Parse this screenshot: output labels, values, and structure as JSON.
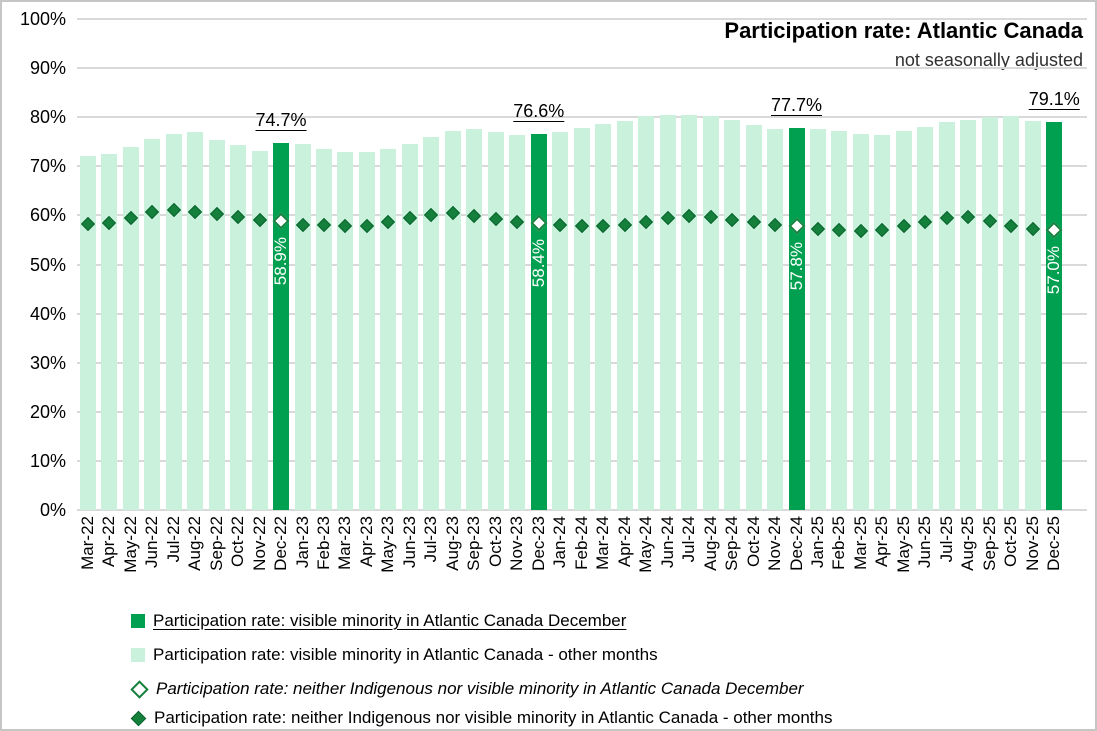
{
  "title": "Participation rate: Atlantic Canada",
  "subtitle": "not seasonally adjusted",
  "colors": {
    "december_bar": "#00A050",
    "other_bar": "#C9F1DC",
    "diamond_filled": "#14803C",
    "diamond_open_border": "#14803C",
    "diamond_open_fill": "#FFFFFF",
    "gridline": "#D9D9D9",
    "inner_label_text": "#FFFFFF",
    "callout_text": "#000000"
  },
  "chart_data": {
    "type": "bar",
    "title": "Participation rate: Atlantic Canada",
    "subtitle": "not seasonally adjusted",
    "categories": [
      "Mar-22",
      "Apr-22",
      "May-22",
      "Jun-22",
      "Jul-22",
      "Aug-22",
      "Sep-22",
      "Oct-22",
      "Nov-22",
      "Dec-22",
      "Jan-23",
      "Feb-23",
      "Mar-23",
      "Apr-23",
      "May-23",
      "Jun-23",
      "Jul-23",
      "Aug-23",
      "Sep-23",
      "Oct-23",
      "Nov-23",
      "Dec-23",
      "Jan-24",
      "Feb-24",
      "Mar-24",
      "Apr-24",
      "May-24",
      "Jun-24",
      "Jul-24",
      "Aug-24",
      "Sep-24",
      "Oct-24",
      "Nov-24",
      "Dec-24",
      "Jan-25",
      "Feb-25",
      "Mar-25",
      "Apr-25",
      "May-25",
      "Jun-25",
      "Jul-25",
      "Aug-25",
      "Sep-25",
      "Oct-25",
      "Nov-25",
      "Dec-25"
    ],
    "series": [
      {
        "name": "Participation rate: visible minority in Atlantic Canada",
        "type": "bar",
        "values": [
          72.1,
          72.6,
          73.9,
          75.6,
          76.5,
          77.0,
          75.4,
          74.4,
          73.2,
          74.7,
          74.6,
          73.6,
          72.9,
          73.0,
          73.5,
          74.6,
          75.9,
          77.2,
          77.6,
          77.0,
          76.3,
          76.6,
          76.9,
          77.7,
          78.7,
          79.3,
          80.2,
          80.4,
          80.5,
          80.2,
          79.5,
          78.4,
          77.5,
          77.7,
          77.6,
          77.2,
          76.6,
          76.3,
          77.2,
          78.0,
          79.1,
          79.5,
          80.1,
          80.3,
          79.3,
          79.1
        ]
      },
      {
        "name": "Participation rate: neither Indigenous nor visible minority in Atlantic Canada",
        "type": "scatter-diamond",
        "values": [
          58.2,
          58.5,
          59.5,
          60.7,
          61.0,
          60.7,
          60.2,
          59.7,
          59.0,
          58.9,
          58.1,
          58.1,
          57.8,
          57.9,
          58.6,
          59.5,
          60.0,
          60.4,
          59.8,
          59.2,
          58.7,
          58.4,
          58.0,
          57.9,
          57.8,
          58.1,
          58.7,
          59.4,
          59.8,
          59.6,
          59.1,
          58.7,
          58.0,
          57.8,
          57.3,
          57.1,
          56.9,
          57.0,
          57.8,
          58.7,
          59.5,
          59.7,
          58.9,
          57.9,
          57.2,
          57.0
        ]
      }
    ],
    "december_indices": [
      9,
      21,
      33,
      45
    ],
    "december_bar_labels": [
      "74.7%",
      "76.6%",
      "77.7%",
      "79.1%"
    ],
    "december_diamond_labels": [
      "58.9%",
      "58.4%",
      "57.8%",
      "57.0%"
    ],
    "ylim": [
      0,
      100
    ],
    "ytick_labels": [
      "0%",
      "10%",
      "20%",
      "30%",
      "40%",
      "50%",
      "60%",
      "70%",
      "80%",
      "90%",
      "100%"
    ],
    "grid": true,
    "legend_position": "bottom"
  },
  "legend": {
    "items": [
      {
        "marker": "square-december",
        "label": "Participation rate: visible minority in Atlantic Canada December",
        "underline": true,
        "italic": false
      },
      {
        "marker": "square-other",
        "label": "Participation rate: visible minority in Atlantic Canada - other months",
        "underline": false,
        "italic": false
      },
      {
        "marker": "diamond-open",
        "label": "Participation rate: neither Indigenous nor visible minority in Atlantic Canada December",
        "underline": false,
        "italic": true
      },
      {
        "marker": "diamond-filled",
        "label": "Participation rate: neither Indigenous nor visible minority in Atlantic Canada - other months",
        "underline": false,
        "italic": false
      }
    ]
  }
}
